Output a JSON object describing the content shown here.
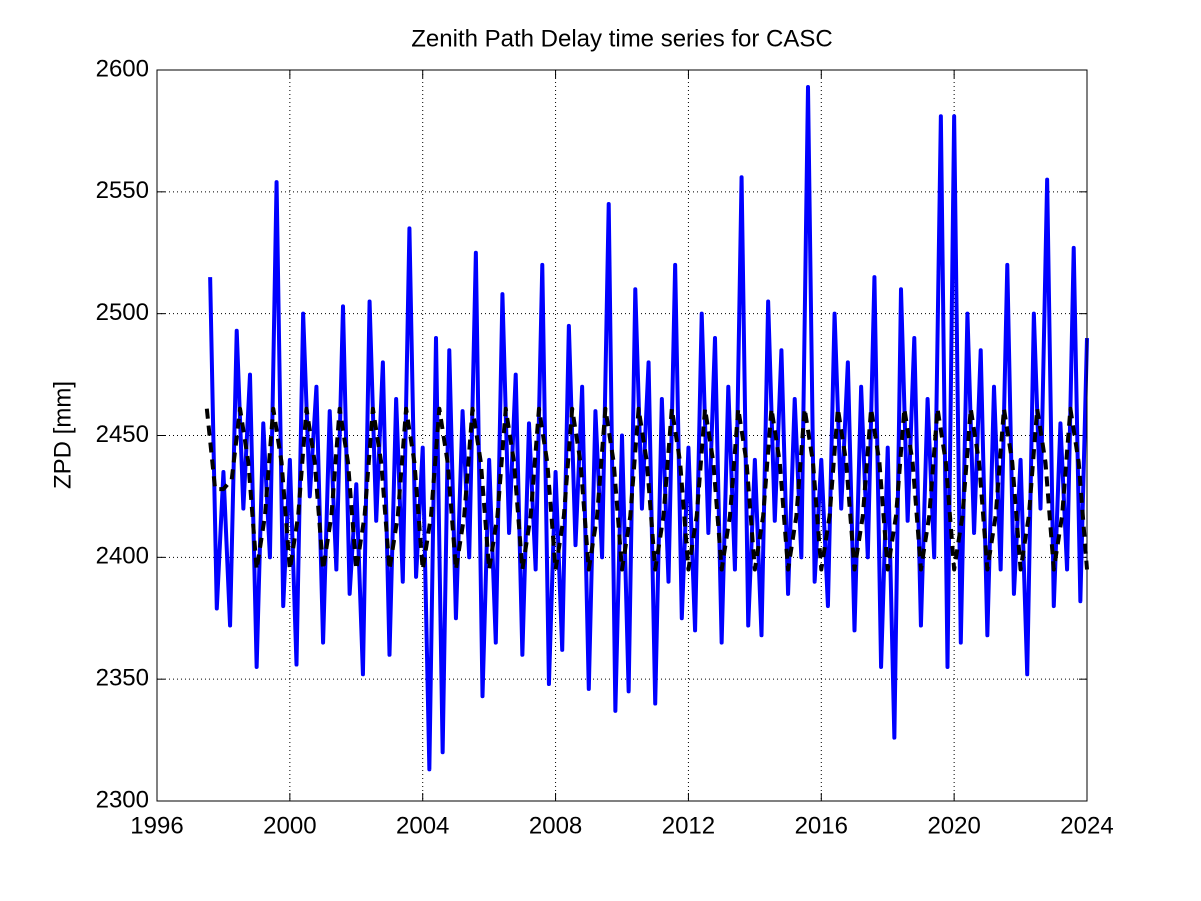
{
  "chart_data": {
    "type": "line",
    "title": "Zenith Path Delay time series for CASC",
    "ylabel": "ZPD [mm]",
    "xlim": [
      1996,
      2024
    ],
    "xticks": [
      1996,
      2000,
      2004,
      2008,
      2012,
      2016,
      2020,
      2024
    ],
    "ylim": [
      2300,
      2600
    ],
    "yticks": [
      2300,
      2350,
      2400,
      2450,
      2500,
      2550,
      2600
    ],
    "grid": true,
    "series": [
      {
        "color": "#0000ff",
        "dash": false,
        "x": [
          1997.6,
          1997.8,
          1998.0,
          1998.2,
          1998.4,
          1998.6,
          1998.8,
          1999.0,
          1999.2,
          1999.4,
          1999.6,
          1999.8,
          2000.0,
          2000.2,
          2000.4,
          2000.6,
          2000.8,
          2001.0,
          2001.2,
          2001.4,
          2001.6,
          2001.8,
          2002.0,
          2002.2,
          2002.4,
          2002.6,
          2002.8,
          2003.0,
          2003.2,
          2003.4,
          2003.6,
          2003.8,
          2004.0,
          2004.2,
          2004.4,
          2004.6,
          2004.8,
          2005.0,
          2005.2,
          2005.4,
          2005.6,
          2005.8,
          2006.0,
          2006.2,
          2006.4,
          2006.6,
          2006.8,
          2007.0,
          2007.2,
          2007.4,
          2007.6,
          2007.8,
          2008.0,
          2008.2,
          2008.4,
          2008.6,
          2008.8,
          2009.0,
          2009.2,
          2009.4,
          2009.6,
          2009.8,
          2010.0,
          2010.2,
          2010.4,
          2010.6,
          2010.8,
          2011.0,
          2011.2,
          2011.4,
          2011.6,
          2011.8,
          2012.0,
          2012.2,
          2012.4,
          2012.6,
          2012.8,
          2013.0,
          2013.2,
          2013.4,
          2013.6,
          2013.8,
          2014.0,
          2014.2,
          2014.4,
          2014.6,
          2014.8,
          2015.0,
          2015.2,
          2015.4,
          2015.6,
          2015.8,
          2016.0,
          2016.2,
          2016.4,
          2016.6,
          2016.8,
          2017.0,
          2017.2,
          2017.4,
          2017.6,
          2017.8,
          2018.0,
          2018.2,
          2018.4,
          2018.6,
          2018.8,
          2019.0,
          2019.2,
          2019.4,
          2019.6,
          2019.8,
          2020.0,
          2020.2,
          2020.4,
          2020.6,
          2020.8,
          2021.0,
          2021.2,
          2021.4,
          2021.6,
          2021.8,
          2022.0,
          2022.2,
          2022.4,
          2022.6,
          2022.8,
          2023.0,
          2023.2,
          2023.4,
          2023.6,
          2023.8,
          2024.0
        ],
        "values": [
          2515,
          2379,
          2435,
          2372,
          2493,
          2420,
          2475,
          2355,
          2455,
          2400,
          2554,
          2380,
          2440,
          2356,
          2500,
          2425,
          2470,
          2365,
          2460,
          2395,
          2503,
          2385,
          2430,
          2352,
          2505,
          2415,
          2480,
          2360,
          2465,
          2390,
          2535,
          2392,
          2445,
          2313,
          2490,
          2320,
          2485,
          2375,
          2460,
          2400,
          2525,
          2343,
          2440,
          2365,
          2508,
          2410,
          2475,
          2360,
          2455,
          2395,
          2520,
          2348,
          2435,
          2362,
          2495,
          2405,
          2470,
          2346,
          2460,
          2400,
          2545,
          2337,
          2450,
          2345,
          2510,
          2420,
          2480,
          2340,
          2465,
          2390,
          2520,
          2375,
          2445,
          2370,
          2500,
          2410,
          2490,
          2365,
          2470,
          2395,
          2556,
          2372,
          2440,
          2368,
          2505,
          2415,
          2485,
          2385,
          2465,
          2400,
          2593,
          2390,
          2440,
          2380,
          2500,
          2420,
          2480,
          2370,
          2470,
          2400,
          2515,
          2355,
          2445,
          2326,
          2510,
          2415,
          2490,
          2372,
          2465,
          2400,
          2581,
          2355,
          2581,
          2365,
          2500,
          2410,
          2485,
          2368,
          2470,
          2395,
          2520,
          2385,
          2440,
          2352,
          2500,
          2420,
          2555,
          2380,
          2455,
          2395,
          2527,
          2382,
          2490
        ]
      },
      {
        "color": "#000000",
        "dash": true,
        "x": [
          1997.5,
          1997.75,
          1998.0,
          1998.25,
          1998.5,
          1998.75,
          1999.0,
          1999.25,
          1999.5,
          1999.75,
          2000.0,
          2000.25,
          2000.5,
          2000.75,
          2001.0,
          2001.25,
          2001.5,
          2001.75,
          2002.0,
          2002.25,
          2002.5,
          2002.75,
          2003.0,
          2003.25,
          2003.5,
          2003.75,
          2004.0,
          2004.25,
          2004.5,
          2004.75,
          2005.0,
          2005.25,
          2005.5,
          2005.75,
          2006.0,
          2006.25,
          2006.5,
          2006.75,
          2007.0,
          2007.25,
          2007.5,
          2007.75,
          2008.0,
          2008.25,
          2008.5,
          2008.75,
          2009.0,
          2009.25,
          2009.5,
          2009.75,
          2010.0,
          2010.25,
          2010.5,
          2010.75,
          2011.0,
          2011.25,
          2011.5,
          2011.75,
          2012.0,
          2012.25,
          2012.5,
          2012.75,
          2013.0,
          2013.25,
          2013.5,
          2013.75,
          2014.0,
          2014.25,
          2014.5,
          2014.75,
          2015.0,
          2015.25,
          2015.5,
          2015.75,
          2016.0,
          2016.25,
          2016.5,
          2016.75,
          2017.0,
          2017.25,
          2017.5,
          2017.75,
          2018.0,
          2018.25,
          2018.5,
          2018.75,
          2019.0,
          2019.25,
          2019.5,
          2019.75,
          2020.0,
          2020.25,
          2020.5,
          2020.75,
          2021.0,
          2021.25,
          2021.5,
          2021.75,
          2022.0,
          2022.25,
          2022.5,
          2022.75,
          2023.0,
          2023.25,
          2023.5,
          2023.75,
          2024.0
        ],
        "values": [
          2461,
          2428,
          2428,
          2432,
          2461,
          2439,
          2395,
          2417,
          2461,
          2439,
          2395,
          2417,
          2461,
          2439,
          2395,
          2417,
          2461,
          2439,
          2395,
          2417,
          2461,
          2439,
          2395,
          2417,
          2461,
          2439,
          2395,
          2417,
          2461,
          2439,
          2395,
          2417,
          2461,
          2439,
          2395,
          2417,
          2461,
          2439,
          2395,
          2417,
          2461,
          2439,
          2395,
          2417,
          2461,
          2439,
          2395,
          2417,
          2461,
          2439,
          2395,
          2417,
          2461,
          2439,
          2395,
          2417,
          2461,
          2439,
          2395,
          2417,
          2461,
          2439,
          2395,
          2417,
          2461,
          2439,
          2395,
          2417,
          2461,
          2439,
          2395,
          2417,
          2461,
          2439,
          2395,
          2417,
          2461,
          2439,
          2395,
          2417,
          2461,
          2439,
          2395,
          2417,
          2461,
          2439,
          2395,
          2417,
          2461,
          2439,
          2395,
          2417,
          2461,
          2439,
          2395,
          2417,
          2461,
          2439,
          2395,
          2417,
          2461,
          2439,
          2395,
          2417,
          2461,
          2439,
          2395
        ]
      }
    ]
  }
}
